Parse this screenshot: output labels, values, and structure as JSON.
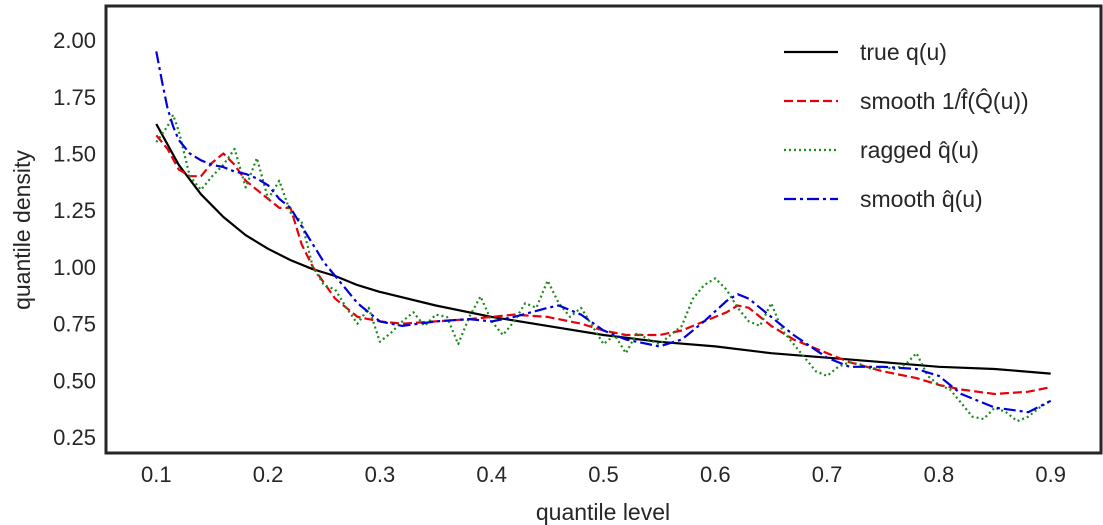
{
  "chart_data": {
    "type": "line",
    "title": "",
    "xlabel": "quantile level",
    "ylabel": "quantile density",
    "xlim": [
      0.055,
      0.945
    ],
    "ylim": [
      0.18,
      2.15
    ],
    "xticks": [
      0.1,
      0.2,
      0.3,
      0.4,
      0.5,
      0.6,
      0.7,
      0.8,
      0.9
    ],
    "xtick_labels": [
      "0.1",
      "0.2",
      "0.3",
      "0.4",
      "0.5",
      "0.6",
      "0.7",
      "0.8",
      "0.9"
    ],
    "yticks": [
      0.25,
      0.5,
      0.75,
      1.0,
      1.25,
      1.5,
      1.75,
      2.0
    ],
    "ytick_labels": [
      "0.25",
      "0.50",
      "0.75",
      "1.00",
      "1.25",
      "1.50",
      "1.75",
      "2.00"
    ],
    "grid": false,
    "legend_position": "top-right",
    "series": [
      {
        "name": "true q(u)",
        "color": "#000000",
        "dash": "solid",
        "x": [
          0.1,
          0.12,
          0.14,
          0.16,
          0.18,
          0.2,
          0.22,
          0.24,
          0.26,
          0.28,
          0.3,
          0.35,
          0.4,
          0.45,
          0.5,
          0.55,
          0.6,
          0.65,
          0.7,
          0.75,
          0.8,
          0.85,
          0.9
        ],
        "y": [
          1.63,
          1.45,
          1.32,
          1.22,
          1.14,
          1.08,
          1.03,
          0.99,
          0.96,
          0.92,
          0.89,
          0.83,
          0.78,
          0.74,
          0.7,
          0.67,
          0.65,
          0.62,
          0.6,
          0.58,
          0.56,
          0.55,
          0.53
        ]
      },
      {
        "name": "smooth 1/f̂(Q̂(u))",
        "color": "#e8000b",
        "dash": "dashed",
        "x": [
          0.1,
          0.11,
          0.12,
          0.13,
          0.14,
          0.15,
          0.16,
          0.17,
          0.18,
          0.19,
          0.2,
          0.21,
          0.22,
          0.23,
          0.24,
          0.25,
          0.26,
          0.27,
          0.28,
          0.3,
          0.32,
          0.35,
          0.38,
          0.4,
          0.42,
          0.45,
          0.48,
          0.5,
          0.52,
          0.55,
          0.57,
          0.59,
          0.61,
          0.62,
          0.63,
          0.65,
          0.67,
          0.7,
          0.72,
          0.75,
          0.78,
          0.8,
          0.82,
          0.85,
          0.88,
          0.9
        ],
        "y": [
          1.58,
          1.52,
          1.43,
          1.4,
          1.4,
          1.46,
          1.5,
          1.45,
          1.38,
          1.34,
          1.3,
          1.26,
          1.26,
          1.1,
          1.0,
          0.93,
          0.86,
          0.82,
          0.78,
          0.76,
          0.75,
          0.76,
          0.77,
          0.78,
          0.79,
          0.78,
          0.75,
          0.72,
          0.7,
          0.7,
          0.72,
          0.76,
          0.8,
          0.83,
          0.82,
          0.74,
          0.68,
          0.62,
          0.58,
          0.54,
          0.51,
          0.48,
          0.46,
          0.44,
          0.45,
          0.47
        ]
      },
      {
        "name": "ragged q̂(u)",
        "color": "#1a8a1a",
        "dash": "dotted",
        "x": [
          0.1,
          0.11,
          0.115,
          0.12,
          0.13,
          0.14,
          0.15,
          0.16,
          0.17,
          0.18,
          0.19,
          0.2,
          0.21,
          0.22,
          0.23,
          0.24,
          0.25,
          0.26,
          0.27,
          0.28,
          0.29,
          0.3,
          0.31,
          0.32,
          0.33,
          0.34,
          0.35,
          0.36,
          0.37,
          0.38,
          0.39,
          0.4,
          0.41,
          0.42,
          0.43,
          0.44,
          0.45,
          0.46,
          0.47,
          0.48,
          0.49,
          0.5,
          0.51,
          0.52,
          0.53,
          0.54,
          0.55,
          0.56,
          0.57,
          0.58,
          0.59,
          0.6,
          0.61,
          0.62,
          0.63,
          0.64,
          0.65,
          0.66,
          0.67,
          0.68,
          0.69,
          0.7,
          0.71,
          0.72,
          0.73,
          0.74,
          0.75,
          0.76,
          0.77,
          0.78,
          0.79,
          0.8,
          0.81,
          0.82,
          0.83,
          0.84,
          0.85,
          0.86,
          0.87,
          0.88,
          0.89,
          0.9
        ],
        "y": [
          1.55,
          1.62,
          1.67,
          1.6,
          1.4,
          1.34,
          1.4,
          1.45,
          1.52,
          1.35,
          1.48,
          1.3,
          1.38,
          1.24,
          1.2,
          1.0,
          0.92,
          0.9,
          0.82,
          0.75,
          0.82,
          0.67,
          0.71,
          0.76,
          0.8,
          0.74,
          0.79,
          0.78,
          0.66,
          0.78,
          0.87,
          0.76,
          0.7,
          0.76,
          0.84,
          0.82,
          0.94,
          0.84,
          0.78,
          0.82,
          0.74,
          0.66,
          0.7,
          0.62,
          0.71,
          0.68,
          0.66,
          0.7,
          0.74,
          0.86,
          0.92,
          0.95,
          0.9,
          0.82,
          0.76,
          0.74,
          0.84,
          0.72,
          0.66,
          0.6,
          0.54,
          0.52,
          0.56,
          0.58,
          0.57,
          0.55,
          0.56,
          0.55,
          0.57,
          0.62,
          0.52,
          0.48,
          0.46,
          0.4,
          0.34,
          0.33,
          0.38,
          0.36,
          0.32,
          0.34,
          0.38,
          0.41
        ]
      },
      {
        "name": "smooth q̂(u)",
        "color": "#0000dd",
        "dash": "dashdot",
        "x": [
          0.1,
          0.105,
          0.11,
          0.115,
          0.12,
          0.13,
          0.14,
          0.15,
          0.16,
          0.17,
          0.18,
          0.19,
          0.2,
          0.21,
          0.22,
          0.23,
          0.24,
          0.25,
          0.26,
          0.27,
          0.28,
          0.3,
          0.32,
          0.35,
          0.38,
          0.4,
          0.42,
          0.45,
          0.46,
          0.48,
          0.5,
          0.52,
          0.55,
          0.57,
          0.59,
          0.61,
          0.62,
          0.63,
          0.65,
          0.67,
          0.7,
          0.72,
          0.75,
          0.78,
          0.8,
          0.82,
          0.85,
          0.88,
          0.9
        ],
        "y": [
          1.95,
          1.82,
          1.7,
          1.62,
          1.56,
          1.5,
          1.47,
          1.45,
          1.44,
          1.42,
          1.41,
          1.39,
          1.36,
          1.3,
          1.26,
          1.18,
          1.1,
          1.02,
          0.96,
          0.9,
          0.84,
          0.76,
          0.74,
          0.76,
          0.77,
          0.76,
          0.78,
          0.82,
          0.83,
          0.79,
          0.72,
          0.68,
          0.65,
          0.68,
          0.76,
          0.85,
          0.88,
          0.86,
          0.78,
          0.7,
          0.6,
          0.56,
          0.56,
          0.55,
          0.52,
          0.44,
          0.38,
          0.36,
          0.41
        ]
      }
    ]
  }
}
